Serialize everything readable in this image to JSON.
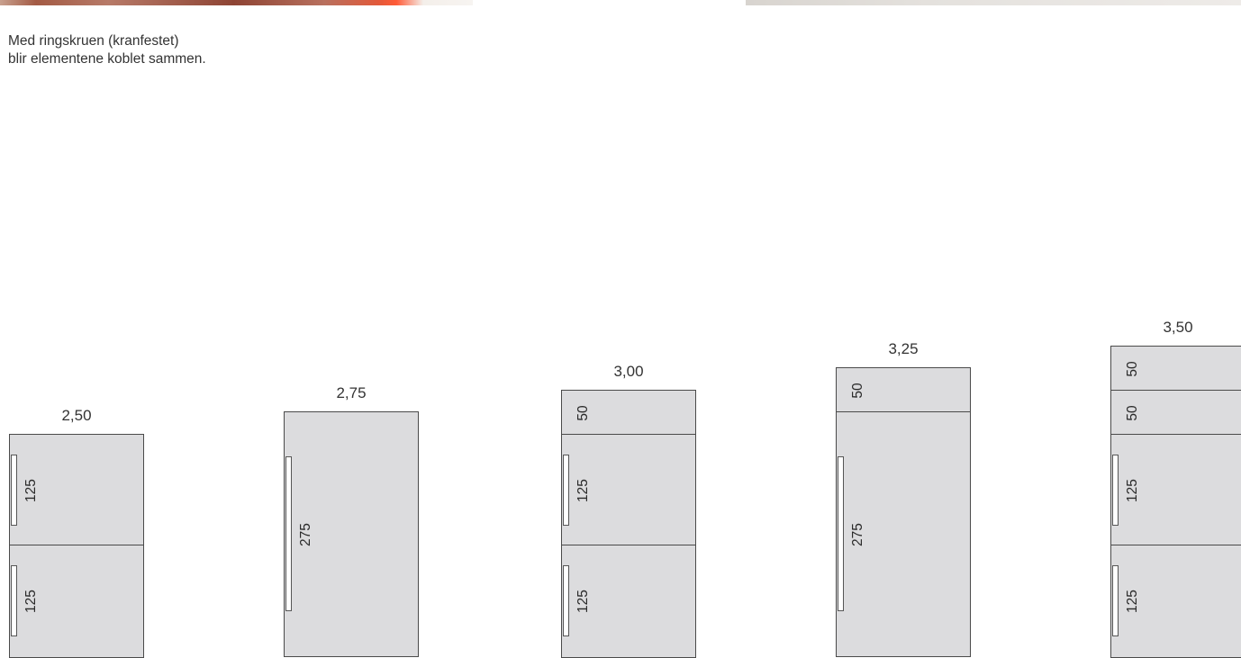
{
  "caption": {
    "line1": "Med ringskruen (kranfestet)",
    "line2": "blir elementene koblet sammen."
  },
  "columns": [
    {
      "total": "2,50",
      "blocks": [
        {
          "value": "125",
          "handle": true
        },
        {
          "value": "125",
          "handle": true
        }
      ]
    },
    {
      "total": "2,75",
      "blocks": [
        {
          "value": "275",
          "handle": true
        }
      ]
    },
    {
      "total": "3,00",
      "blocks": [
        {
          "value": "50",
          "handle": false
        },
        {
          "value": "125",
          "handle": true
        },
        {
          "value": "125",
          "handle": true
        }
      ]
    },
    {
      "total": "3,25",
      "blocks": [
        {
          "value": "50",
          "handle": false
        },
        {
          "value": "275",
          "handle": true
        }
      ]
    },
    {
      "total": "3,50",
      "blocks": [
        {
          "value": "50",
          "handle": false
        },
        {
          "value": "50",
          "handle": false
        },
        {
          "value": "125",
          "handle": true
        },
        {
          "value": "125",
          "handle": true
        }
      ]
    }
  ],
  "colors": {
    "panel": "#dcdcde",
    "outline": "#4a4a4a",
    "handle": "#ffffff"
  }
}
